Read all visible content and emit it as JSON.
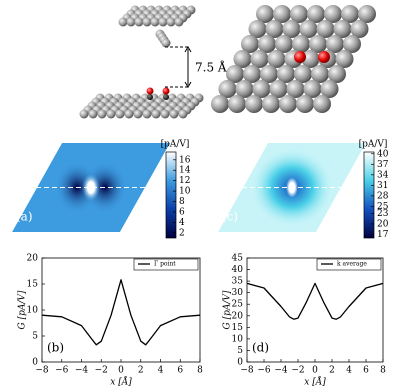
{
  "illustration": {
    "distance_label": "7.5 Å"
  },
  "chart_data": [
    {
      "type": "heatmap",
      "panel_label": "(a)",
      "colorbar_label": "[pA/V]",
      "colors": [
        "#000040",
        "#0a3fa8",
        "#3d9be0",
        "#ffffff"
      ],
      "clim": [
        1,
        17.5
      ],
      "cticks": [
        2,
        4,
        6,
        8,
        10,
        12,
        14,
        16
      ]
    },
    {
      "type": "heatmap",
      "panel_label": "(c)",
      "colorbar_label": "[pA/V]",
      "colors": [
        "#000040",
        "#1450c0",
        "#4ad0e8",
        "#ffffff"
      ],
      "clim": [
        16,
        40.5
      ],
      "cticks": [
        17,
        20,
        23,
        25,
        28,
        31,
        34,
        37,
        40
      ]
    },
    {
      "type": "line",
      "panel_label": "(b)",
      "ylabel": "G [pA/V]",
      "xlabel": "x [Å]",
      "legend": "upper right",
      "x": [
        -8,
        -6,
        -4,
        -3,
        -2.5,
        -2,
        -1,
        0,
        1,
        2,
        2.5,
        3,
        4,
        6,
        8
      ],
      "series": [
        {
          "name": "Γ point",
          "color": "#000000",
          "values": [
            9,
            8.7,
            7,
            4.5,
            3.3,
            4,
            9,
            15.8,
            9,
            4,
            3.3,
            4.5,
            7,
            8.7,
            9
          ]
        }
      ],
      "xlim": [
        -8,
        8
      ],
      "ylim": [
        0,
        20
      ],
      "xticks": [
        {
          "value": -8,
          "label": "−8"
        },
        {
          "value": -6,
          "label": "−6"
        },
        {
          "value": -4,
          "label": "−4"
        },
        {
          "value": -2,
          "label": "−2"
        },
        0,
        2,
        4,
        6,
        8
      ],
      "yticks": [
        0,
        5,
        10,
        15,
        20
      ]
    },
    {
      "type": "line",
      "panel_label": "(d)",
      "ylabel": "G [pA/V]",
      "xlabel": "x [Å]",
      "legend": "upper right",
      "x": [
        -8,
        -6,
        -4,
        -3,
        -2.5,
        -2,
        -1,
        0,
        1,
        2,
        2.5,
        3,
        4,
        6,
        8
      ],
      "series": [
        {
          "name": "k average",
          "color": "#000000",
          "values": [
            34,
            32,
            24,
            19.5,
            18.5,
            19,
            26,
            34,
            26,
            19,
            18.5,
            19.5,
            24,
            32,
            34
          ]
        }
      ],
      "xlim": [
        -8,
        8
      ],
      "ylim": [
        0,
        45
      ],
      "xticks": [
        {
          "value": -8,
          "label": "−8"
        },
        {
          "value": -6,
          "label": "−6"
        },
        {
          "value": -4,
          "label": "−4"
        },
        {
          "value": -2,
          "label": "−2"
        },
        0,
        2,
        4,
        6,
        8
      ],
      "yticks": [
        0,
        5,
        10,
        15,
        20,
        25,
        30,
        35,
        40,
        45
      ]
    }
  ]
}
